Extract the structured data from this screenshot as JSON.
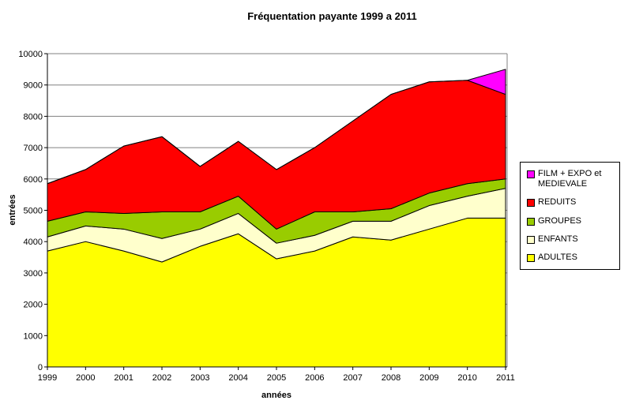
{
  "title": "Fréquentation payante 1999 a 2011",
  "chart_data": {
    "type": "area",
    "stacked": true,
    "title": "Fréquentation payante 1999 a 2011",
    "xlabel": "années",
    "ylabel": "entrées",
    "x": [
      1999,
      2000,
      2001,
      2002,
      2003,
      2004,
      2005,
      2006,
      2007,
      2008,
      2009,
      2010,
      2011
    ],
    "ylim": [
      0,
      10000
    ],
    "ytick_step": 1000,
    "grid": true,
    "grid_color": "#808080",
    "axis_color": "#000000",
    "legend_position": "right",
    "series": [
      {
        "name": "ADULTES",
        "color": "#FFFF00",
        "values": [
          3700,
          4000,
          3700,
          3350,
          3850,
          4250,
          3450,
          3700,
          4150,
          4050,
          4400,
          4750,
          4750
        ]
      },
      {
        "name": "ENFANTS",
        "color": "#FFFFCC",
        "values": [
          450,
          500,
          700,
          750,
          550,
          650,
          500,
          500,
          500,
          600,
          750,
          700,
          950
        ]
      },
      {
        "name": "GROUPES",
        "color": "#99CC00",
        "values": [
          500,
          450,
          500,
          850,
          550,
          550,
          450,
          750,
          300,
          400,
          400,
          400,
          300
        ]
      },
      {
        "name": "REDUITS",
        "color": "#FF0000",
        "values": [
          1200,
          1350,
          2150,
          2400,
          1450,
          1750,
          1900,
          2050,
          2900,
          3650,
          3550,
          3300,
          2700
        ]
      },
      {
        "name": "FILM + EXPO et MEDIEVALE",
        "color": "#FF00FF",
        "values": [
          0,
          0,
          0,
          0,
          0,
          0,
          0,
          0,
          0,
          0,
          0,
          0,
          800
        ]
      }
    ],
    "legend_items": [
      {
        "name": "film-expo-medievale",
        "label": "FILM + EXPO et MEDIEVALE",
        "color": "#FF00FF"
      },
      {
        "name": "reduits",
        "label": "REDUITS",
        "color": "#FF0000"
      },
      {
        "name": "groupes",
        "label": "GROUPES",
        "color": "#99CC00"
      },
      {
        "name": "enfants",
        "label": "ENFANTS",
        "color": "#FFFFCC"
      },
      {
        "name": "adultes",
        "label": "ADULTES",
        "color": "#FFFF00"
      }
    ]
  }
}
